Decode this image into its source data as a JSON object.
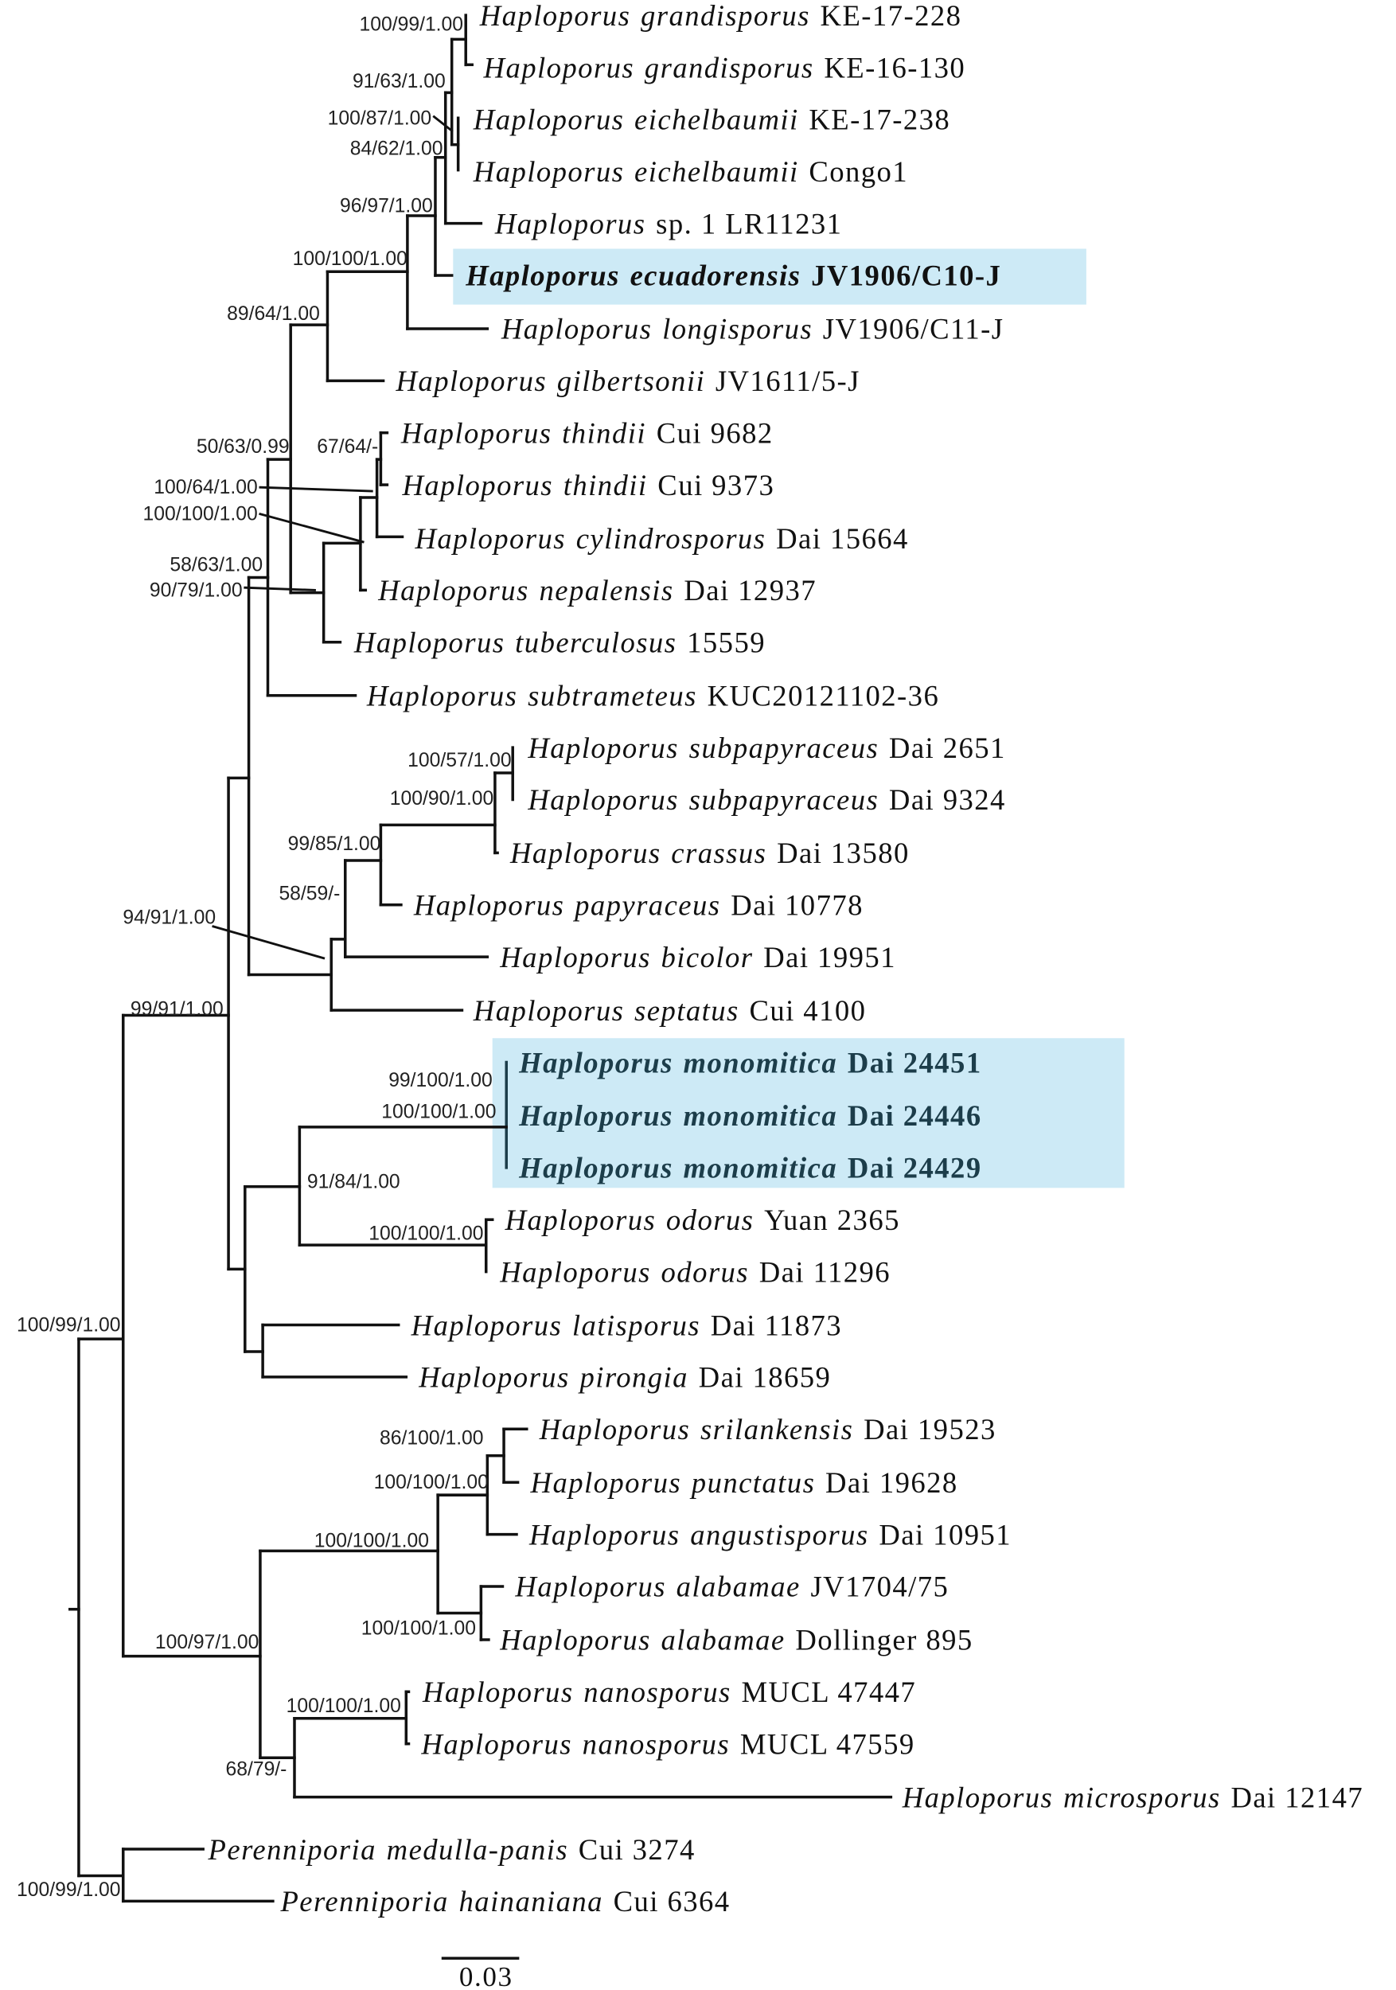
{
  "figure": {
    "type": "phylogenetic-tree",
    "scale_bar_label": "0.03",
    "highlight_color": "#cdeaf6",
    "tips": [
      {
        "genus": "Haploporus",
        "epithet": "grandisporus",
        "strain": "KE-17-228"
      },
      {
        "genus": "Haploporus",
        "epithet": "grandisporus",
        "strain": "KE-16-130"
      },
      {
        "genus": "Haploporus",
        "epithet": "eichelbaumii",
        "strain": "KE-17-238"
      },
      {
        "genus": "Haploporus",
        "epithet": "eichelbaumii",
        "strain": "Congo1"
      },
      {
        "genus": "Haploporus",
        "epithet": "",
        "strain": "sp. 1 LR11231"
      },
      {
        "genus": "Haploporus",
        "epithet": "ecuadorensis",
        "strain": "JV1906/C10-J",
        "highlighted": true
      },
      {
        "genus": "Haploporus",
        "epithet": "longisporus",
        "strain": "JV1906/C11-J"
      },
      {
        "genus": "Haploporus",
        "epithet": "gilbertsonii",
        "strain": "JV1611/5-J"
      },
      {
        "genus": "Haploporus",
        "epithet": "thindii",
        "strain": "Cui 9682"
      },
      {
        "genus": "Haploporus",
        "epithet": "thindii",
        "strain": "Cui 9373"
      },
      {
        "genus": "Haploporus",
        "epithet": "cylindrosporus",
        "strain": "Dai 15664"
      },
      {
        "genus": "Haploporus",
        "epithet": "nepalensis",
        "strain": "Dai 12937"
      },
      {
        "genus": "Haploporus",
        "epithet": "tuberculosus",
        "strain": "15559"
      },
      {
        "genus": "Haploporus",
        "epithet": "subtrameteus",
        "strain": "KUC20121102-36"
      },
      {
        "genus": "Haploporus",
        "epithet": "subpapyraceus",
        "strain": "Dai 2651"
      },
      {
        "genus": "Haploporus",
        "epithet": "subpapyraceus",
        "strain": "Dai 9324"
      },
      {
        "genus": "Haploporus",
        "epithet": "crassus",
        "strain": "Dai 13580"
      },
      {
        "genus": "Haploporus",
        "epithet": "papyraceus",
        "strain": "Dai 10778"
      },
      {
        "genus": "Haploporus",
        "epithet": "bicolor",
        "strain": "Dai 19951"
      },
      {
        "genus": "Haploporus",
        "epithet": "septatus",
        "strain": "Cui 4100"
      },
      {
        "genus": "Haploporus",
        "epithet": "monomitica",
        "strain": "Dai 24451",
        "highlighted": true
      },
      {
        "genus": "Haploporus",
        "epithet": "monomitica",
        "strain": "Dai 24446",
        "highlighted": true
      },
      {
        "genus": "Haploporus",
        "epithet": "monomitica",
        "strain": "Dai 24429",
        "highlighted": true
      },
      {
        "genus": "Haploporus",
        "epithet": "odorus",
        "strain": "Yuan 2365"
      },
      {
        "genus": "Haploporus",
        "epithet": "odorus",
        "strain": "Dai 11296"
      },
      {
        "genus": "Haploporus",
        "epithet": "latisporus",
        "strain": "Dai 11873"
      },
      {
        "genus": "Haploporus",
        "epithet": "pirongia",
        "strain": "Dai 18659"
      },
      {
        "genus": "Haploporus",
        "epithet": "srilankensis",
        "strain": "Dai 19523"
      },
      {
        "genus": "Haploporus",
        "epithet": "punctatus",
        "strain": "Dai 19628"
      },
      {
        "genus": "Haploporus",
        "epithet": "angustisporus",
        "strain": "Dai 10951"
      },
      {
        "genus": "Haploporus",
        "epithet": "alabamae",
        "strain": "JV1704/75"
      },
      {
        "genus": "Haploporus",
        "epithet": "alabamae",
        "strain": "Dollinger 895"
      },
      {
        "genus": "Haploporus",
        "epithet": "nanosporus",
        "strain": "MUCL 47447"
      },
      {
        "genus": "Haploporus",
        "epithet": "nanosporus",
        "strain": "MUCL 47559"
      },
      {
        "genus": "Haploporus",
        "epithet": "microsporus",
        "strain": "Dai 12147"
      },
      {
        "genus": "Perenniporia",
        "epithet": "medulla-panis",
        "strain": "Cui 3274"
      },
      {
        "genus": "Perenniporia",
        "epithet": "hainaniana",
        "strain": "Cui 6364"
      }
    ],
    "supports": [
      "100/99/1.00",
      "91/63/1.00",
      "100/87/1.00",
      "84/62/1.00",
      "96/97/1.00",
      "100/100/1.00",
      "89/64/1.00",
      "50/63/0.99",
      "67/64/-",
      "100/64/1.00",
      "100/100/1.00",
      "58/63/1.00",
      "90/79/1.00",
      "100/57/1.00",
      "100/90/1.00",
      "99/85/1.00",
      "58/59/-",
      "94/91/1.00",
      "99/91/1.00",
      "99/100/1.00",
      "100/100/1.00",
      "91/84/1.00",
      "100/100/1.00",
      "100/99/1.00",
      "86/100/1.00",
      "100/100/1.00",
      "100/100/1.00",
      "100/97/1.00",
      "100/100/1.00",
      "100/100/1.00",
      "68/79/-",
      "100/99/1.00"
    ]
  }
}
